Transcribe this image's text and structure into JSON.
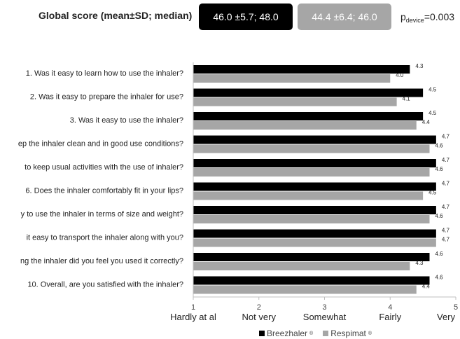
{
  "header": {
    "score_label": "Global score (mean±SD; median)",
    "score_breezhaler": "46.0 ±5.7; 48.0",
    "score_respimat": "44.4 ±6.4; 46.0",
    "p_prefix": "p",
    "p_subscript": "device",
    "p_value": "=0.003"
  },
  "colors": {
    "breezhaler": "#000000",
    "respimat": "#a6a6a6"
  },
  "chart_data": {
    "type": "bar",
    "orientation": "horizontal",
    "categories": [
      "1. Was it easy to learn how to use the inhaler?",
      "2. Was it easy to prepare the inhaler for use?",
      "3. Was it easy to use the inhaler?",
      "ep the inhaler clean and in good use conditions?",
      "to keep usual activities with the use of inhaler?",
      "6. Does the inhaler comfortably fit in your lips?",
      "y to use the inhaler in terms of size and weight?",
      " it easy to transport the inhaler along with you?",
      "ng the inhaler did you feel you used it correctly?",
      "10. Overall, are you satisfied with the inhaler?"
    ],
    "series": [
      {
        "name": "Breezhaler",
        "values": [
          4.3,
          4.5,
          4.5,
          4.7,
          4.7,
          4.7,
          4.7,
          4.7,
          4.6,
          4.6
        ]
      },
      {
        "name": "Respimat",
        "values": [
          4.0,
          4.1,
          4.4,
          4.6,
          4.6,
          4.5,
          4.6,
          4.7,
          4.3,
          4.4
        ]
      }
    ],
    "value_labels": [
      [
        "4.3",
        "4.5",
        "4.5",
        "4.7",
        "4.7",
        "4.7",
        "4.7",
        "4.7",
        "4.6",
        "4.6"
      ],
      [
        "4.0",
        "4.1",
        "4.4",
        "4.6",
        "4.6",
        "4.5",
        "4.6",
        "4.7",
        "4.3",
        "4.4"
      ]
    ],
    "xlim": [
      1,
      5
    ],
    "xticks": [
      {
        "value": 1,
        "num": "1",
        "text": "Hardly at al"
      },
      {
        "value": 2,
        "num": "2",
        "text": "Not very"
      },
      {
        "value": 3,
        "num": "3",
        "text": "Somewhat"
      },
      {
        "value": 4,
        "num": "4",
        "text": "Fairly"
      },
      {
        "value": 5,
        "num": "5",
        "text": "Very"
      }
    ],
    "grid": false,
    "legend": {
      "position": "bottom",
      "items": [
        {
          "label": "Breezhaler",
          "mark": "®"
        },
        {
          "label": "Respimat",
          "mark": "®"
        }
      ]
    }
  }
}
